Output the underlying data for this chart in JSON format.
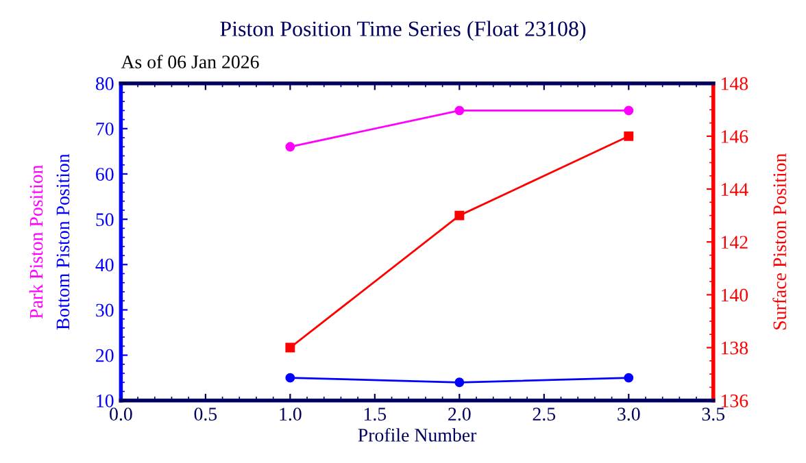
{
  "chart_data": {
    "type": "line",
    "title": "Piston Position Time Series (Float 23108)",
    "subtitle": "As of 06 Jan 2026",
    "xlabel": "Profile Number",
    "x": [
      1,
      2,
      3
    ],
    "series": [
      {
        "name": "Park Piston Position",
        "color": "#ff00ff",
        "values": [
          66,
          74,
          74
        ],
        "marker": "circle"
      },
      {
        "name": "Bottom Piston Position",
        "color": "#0000ff",
        "values": [
          15,
          14,
          15
        ],
        "marker": "circle"
      },
      {
        "name": "Surface Piston Position",
        "color": "#ff0000",
        "values": [
          138,
          143,
          146
        ],
        "axis": "y2",
        "marker": "square"
      }
    ],
    "xlim": [
      0,
      3.5
    ],
    "xticks": [
      {
        "value": 0,
        "label": "0.0"
      },
      {
        "value": 0.5,
        "label": "0.5"
      },
      {
        "value": 1,
        "label": "1.0"
      },
      {
        "value": 1.5,
        "label": "1.5"
      },
      {
        "value": 2,
        "label": "2.0"
      },
      {
        "value": 2.5,
        "label": "2.5"
      },
      {
        "value": 3,
        "label": "3.0"
      },
      {
        "value": 3.5,
        "label": "3.5"
      }
    ],
    "ylim": [
      10,
      80
    ],
    "yticks": [
      10,
      20,
      30,
      40,
      50,
      60,
      70,
      80
    ],
    "y2lim": [
      136,
      148
    ],
    "y2ticks": [
      136,
      138,
      140,
      142,
      144,
      146,
      148
    ],
    "grid": false,
    "legend": false,
    "line_style": "solid"
  }
}
